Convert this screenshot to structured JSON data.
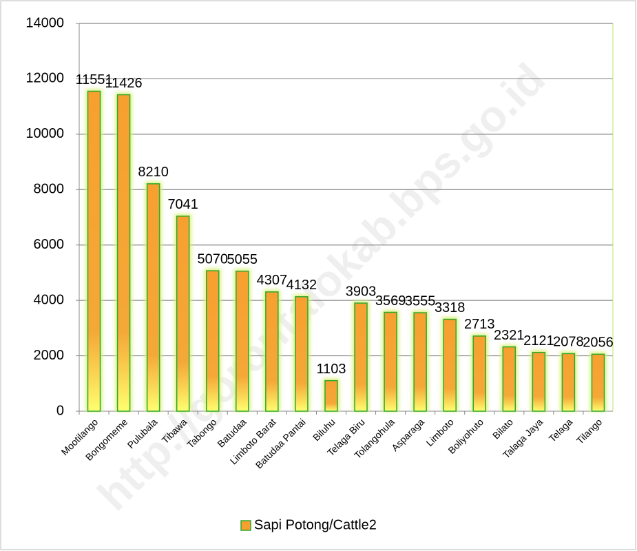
{
  "chart_data": {
    "type": "bar",
    "watermark": "http://gorontalokab.bps.go.id",
    "categories": [
      "Mootilango",
      "Bongomeme",
      "Pulubala",
      "Tibawa",
      "Tabongo",
      "Batudaa",
      "Limboto Barat",
      "Batudaa Pantai",
      "Biluhu",
      "Telaga Biru",
      "Tolangohula",
      "Asparaga",
      "Limboto",
      "Boliyohuto",
      "Bilato",
      "Talaga Jaya",
      "Telaga",
      "Tilango"
    ],
    "series": [
      {
        "name": "Sapi Potong/Cattle2",
        "color": "#f7a030",
        "values": [
          11551,
          11426,
          8210,
          7041,
          5070,
          5055,
          4307,
          4132,
          1103,
          3903,
          3569,
          3555,
          3318,
          2713,
          2321,
          2121,
          2078,
          2056
        ]
      }
    ],
    "ylim": [
      0,
      14000
    ],
    "yticks": [
      0,
      2000,
      4000,
      6000,
      8000,
      10000,
      12000,
      14000
    ],
    "grid": true,
    "legend": "bottom"
  }
}
